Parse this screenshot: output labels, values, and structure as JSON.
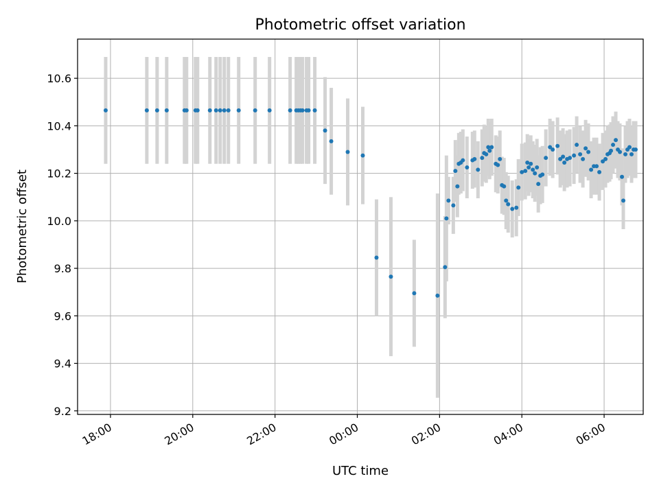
{
  "chart_data": {
    "type": "scatter",
    "title": "Photometric offset variation",
    "xlabel": "UTC time",
    "ylabel": "Photometric offset",
    "xlim": [
      "17:12",
      "06:57"
    ],
    "ylim": [
      9.185,
      10.765
    ],
    "grid": true,
    "x_ticks": [
      "18:00",
      "20:00",
      "22:00",
      "00:00",
      "02:00",
      "04:00",
      "06:00"
    ],
    "y_ticks": [
      "9.2",
      "9.4",
      "9.6",
      "9.8",
      "10.0",
      "10.2",
      "10.4",
      "10.6"
    ],
    "x_tick_values": [
      "18:00",
      "20:00",
      "22:00",
      "00:00",
      "02:00",
      "04:00",
      "06:00"
    ],
    "y_tick_values": [
      9.2,
      9.4,
      9.6,
      9.8,
      10.0,
      10.2,
      10.4,
      10.6
    ],
    "colors": {
      "point": "#1f77b4",
      "errorbar": "#d3d3d3",
      "grid": "#b0b0b0"
    },
    "series": [
      {
        "x": [
          "17:53",
          "18:53",
          "19:08",
          "19:22",
          "19:48",
          "19:51",
          "20:04",
          "20:07",
          "20:25",
          "20:34",
          "20:40",
          "20:46",
          "20:52",
          "21:07",
          "21:31",
          "21:52",
          "22:22",
          "22:31",
          "22:34",
          "22:37",
          "22:40",
          "22:46",
          "22:49",
          "22:58",
          "23:13",
          "23:22",
          "23:46",
          "00:08",
          "00:28",
          "00:49",
          "01:23",
          "01:57",
          "02:08",
          "02:10",
          "02:13",
          "02:20",
          "02:23",
          "02:26",
          "02:28",
          "02:31",
          "02:34",
          "02:40",
          "02:48",
          "02:51",
          "02:56",
          "03:02",
          "03:05",
          "03:08",
          "03:11",
          "03:13",
          "03:16",
          "03:22",
          "03:25",
          "03:28",
          "03:31",
          "03:34",
          "03:37",
          "03:40",
          "03:46",
          "03:52",
          "03:55",
          "04:00",
          "04:05",
          "04:08",
          "04:10",
          "04:13",
          "04:16",
          "04:19",
          "04:22",
          "04:24",
          "04:27",
          "04:30",
          "04:35",
          "04:41",
          "04:45",
          "04:52",
          "04:56",
          "05:00",
          "05:02",
          "05:06",
          "05:10",
          "05:16",
          "05:20",
          "05:25",
          "05:29",
          "05:33",
          "05:37",
          "05:41",
          "05:45",
          "05:49",
          "05:53",
          "05:58",
          "06:02",
          "06:05",
          "06:08",
          "06:10",
          "06:13",
          "06:17",
          "06:20",
          "06:23",
          "06:26",
          "06:28",
          "06:31",
          "06:34",
          "06:37",
          "06:40",
          "06:43",
          "06:46"
        ],
        "y": [
          10.465,
          10.465,
          10.465,
          10.465,
          10.465,
          10.465,
          10.465,
          10.465,
          10.465,
          10.465,
          10.465,
          10.465,
          10.465,
          10.465,
          10.465,
          10.465,
          10.465,
          10.465,
          10.465,
          10.465,
          10.465,
          10.465,
          10.465,
          10.465,
          10.38,
          10.335,
          10.29,
          10.275,
          9.845,
          9.765,
          9.695,
          9.685,
          9.805,
          10.01,
          10.085,
          10.065,
          10.21,
          10.145,
          10.24,
          10.245,
          10.255,
          10.225,
          10.255,
          10.26,
          10.215,
          10.265,
          10.285,
          10.28,
          10.31,
          10.295,
          10.31,
          10.24,
          10.235,
          10.26,
          10.15,
          10.145,
          10.085,
          10.07,
          10.05,
          10.055,
          10.14,
          10.205,
          10.21,
          10.245,
          10.225,
          10.24,
          10.215,
          10.2,
          10.225,
          10.155,
          10.19,
          10.195,
          10.265,
          10.31,
          10.3,
          10.315,
          10.26,
          10.27,
          10.245,
          10.26,
          10.265,
          10.275,
          10.32,
          10.28,
          10.26,
          10.305,
          10.29,
          10.215,
          10.23,
          10.23,
          10.205,
          10.25,
          10.26,
          10.28,
          10.285,
          10.295,
          10.32,
          10.34,
          10.3,
          10.29,
          10.185,
          10.085,
          10.28,
          10.3,
          10.31,
          10.28,
          10.3,
          10.3
        ],
        "yerr": [
          0.225,
          0.225,
          0.225,
          0.225,
          0.225,
          0.225,
          0.225,
          0.225,
          0.225,
          0.225,
          0.225,
          0.225,
          0.225,
          0.225,
          0.225,
          0.225,
          0.225,
          0.225,
          0.225,
          0.225,
          0.225,
          0.225,
          0.225,
          0.225,
          0.225,
          0.225,
          0.225,
          0.205,
          0.245,
          0.335,
          0.225,
          0.43,
          0.215,
          0.265,
          0.1,
          0.12,
          0.13,
          0.13,
          0.13,
          0.13,
          0.13,
          0.13,
          0.12,
          0.12,
          0.12,
          0.12,
          0.12,
          0.12,
          0.12,
          0.12,
          0.12,
          0.12,
          0.12,
          0.12,
          0.12,
          0.12,
          0.12,
          0.12,
          0.12,
          0.12,
          0.12,
          0.12,
          0.12,
          0.12,
          0.12,
          0.12,
          0.12,
          0.12,
          0.12,
          0.12,
          0.12,
          0.12,
          0.12,
          0.12,
          0.12,
          0.12,
          0.12,
          0.12,
          0.12,
          0.12,
          0.12,
          0.12,
          0.12,
          0.12,
          0.12,
          0.12,
          0.12,
          0.12,
          0.12,
          0.12,
          0.12,
          0.12,
          0.12,
          0.12,
          0.12,
          0.12,
          0.12,
          0.12,
          0.12,
          0.12,
          0.12,
          0.12,
          0.12,
          0.12,
          0.12,
          0.12,
          0.12,
          0.12
        ]
      }
    ]
  }
}
